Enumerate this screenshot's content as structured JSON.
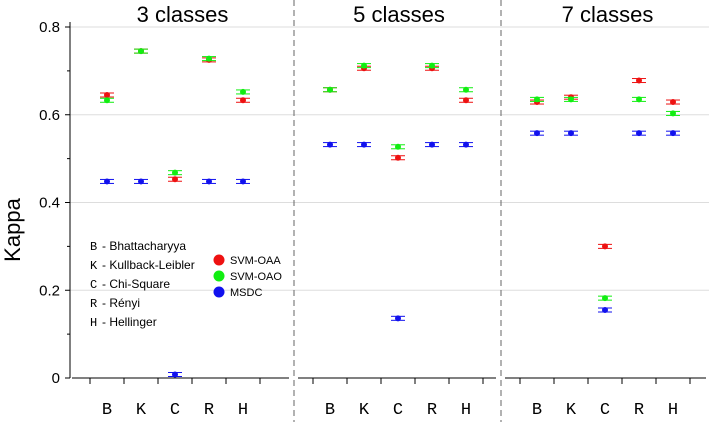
{
  "chart_data": {
    "type": "scatter",
    "ylabel": "Kappa",
    "ylim": [
      0,
      0.8
    ],
    "yticks": [
      "0",
      "0.2",
      "0.4",
      "0.6",
      "0.8"
    ],
    "grid": true,
    "categories": [
      "B",
      "K",
      "C",
      "R",
      "H"
    ],
    "panels": [
      {
        "title": "3 classes",
        "series": [
          {
            "name": "SVM-OAA",
            "values": [
              0.645,
              0.745,
              0.453,
              0.725,
              0.633
            ]
          },
          {
            "name": "SVM-OAO",
            "values": [
              0.633,
              0.745,
              0.468,
              0.728,
              0.652
            ]
          },
          {
            "name": "MSDC",
            "values": [
              0.448,
              0.448,
              0.008,
              0.448,
              0.448
            ]
          }
        ]
      },
      {
        "title": "5 classes",
        "series": [
          {
            "name": "SVM-OAA",
            "values": [
              0.657,
              0.706,
              0.502,
              0.706,
              0.633
            ]
          },
          {
            "name": "SVM-OAO",
            "values": [
              0.657,
              0.712,
              0.527,
              0.712,
              0.657
            ]
          },
          {
            "name": "MSDC",
            "values": [
              0.532,
              0.532,
              0.136,
              0.532,
              0.532
            ]
          }
        ]
      },
      {
        "title": "7 classes",
        "series": [
          {
            "name": "SVM-OAA",
            "values": [
              0.629,
              0.64,
              0.3,
              0.678,
              0.629
            ]
          },
          {
            "name": "SVM-OAO",
            "values": [
              0.635,
              0.635,
              0.182,
              0.635,
              0.603
            ]
          },
          {
            "name": "MSDC",
            "values": [
              0.558,
              0.558,
              0.155,
              0.558,
              0.558
            ]
          }
        ]
      }
    ],
    "series_colors": {
      "SVM-OAA": "#ee1111",
      "SVM-OAO": "#11ee11",
      "MSDC": "#1111ee"
    },
    "legend": {
      "abbreviations": [
        {
          "abbr": "B",
          "text": "- Bhattacharyya"
        },
        {
          "abbr": "K",
          "text": "- Kullback-Leibler"
        },
        {
          "abbr": "C",
          "text": "- Chi-Square"
        },
        {
          "abbr": "R",
          "text": "- Rényi"
        },
        {
          "abbr": "H",
          "text": "- Hellinger"
        }
      ],
      "series_names": [
        "SVM-OAA",
        "SVM-OAO",
        "MSDC"
      ],
      "placement": "bottom-left"
    }
  }
}
